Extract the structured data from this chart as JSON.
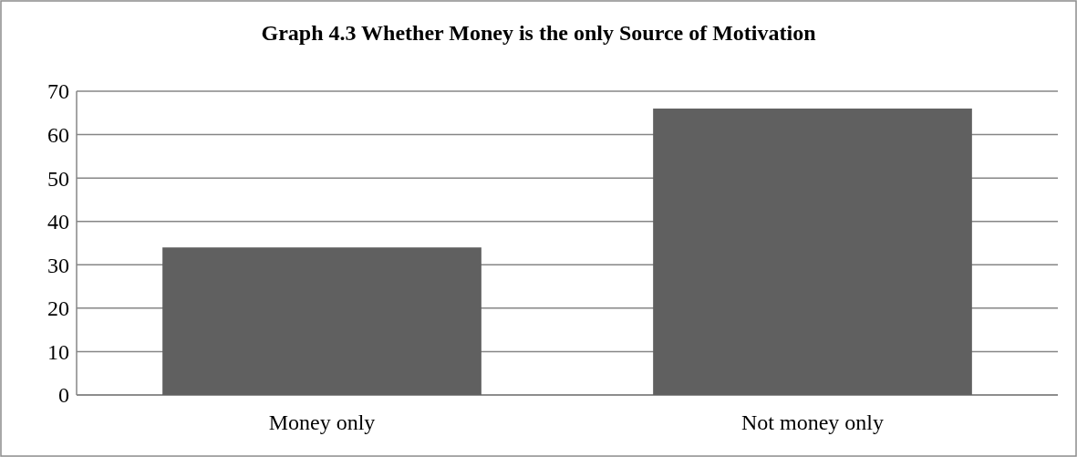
{
  "chart_data": {
    "type": "bar",
    "title": "Graph 4.3 Whether Money is the only Source of Motivation",
    "categories": [
      "Money only",
      "Not money only"
    ],
    "values": [
      34,
      66
    ],
    "color": "#606060",
    "ylim": [
      0,
      70
    ],
    "yticks": [
      0,
      10,
      20,
      30,
      40,
      50,
      60,
      70
    ],
    "grid": "y"
  }
}
